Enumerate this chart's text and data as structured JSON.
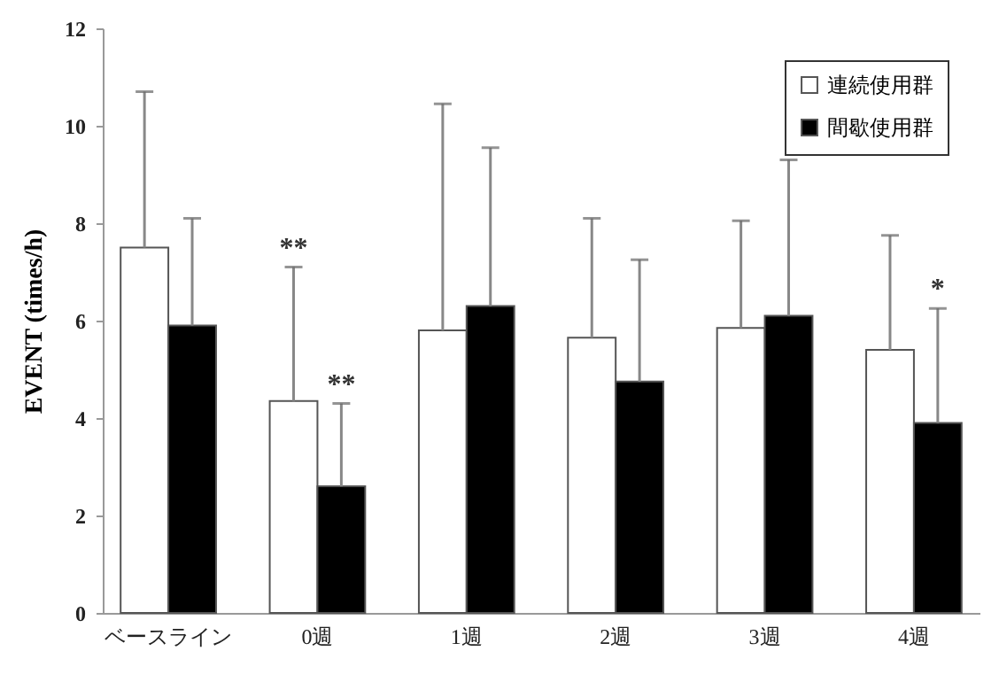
{
  "chart_data": {
    "type": "bar",
    "ylabel": "EVENT (times/h)",
    "categories": [
      "ベースライン",
      "0週",
      "1週",
      "2週",
      "3週",
      "4週"
    ],
    "series": [
      {
        "name": "連続使用群",
        "color": "#ffffff",
        "values": [
          7.5,
          4.35,
          5.8,
          5.65,
          5.85,
          5.4
        ],
        "errors": [
          [
            7.5,
            10.7
          ],
          [
            4.35,
            7.1
          ],
          [
            5.8,
            10.45
          ],
          [
            5.65,
            8.1
          ],
          [
            5.85,
            8.05
          ],
          [
            5.4,
            7.75
          ]
        ]
      },
      {
        "name": "間歇使用群",
        "color": "#000000",
        "values": [
          5.9,
          2.6,
          6.3,
          4.75,
          6.1,
          3.9
        ],
        "errors": [
          [
            5.9,
            8.1
          ],
          [
            2.6,
            4.3
          ],
          [
            6.3,
            9.55
          ],
          [
            4.75,
            7.25
          ],
          [
            6.1,
            9.3
          ],
          [
            3.9,
            6.25
          ]
        ]
      }
    ],
    "ylim": [
      0,
      12
    ],
    "yticks": [
      0,
      2,
      4,
      6,
      8,
      10,
      12
    ],
    "annotations": [
      "**",
      "**",
      "*"
    ],
    "grid": false,
    "legend": "top right"
  }
}
